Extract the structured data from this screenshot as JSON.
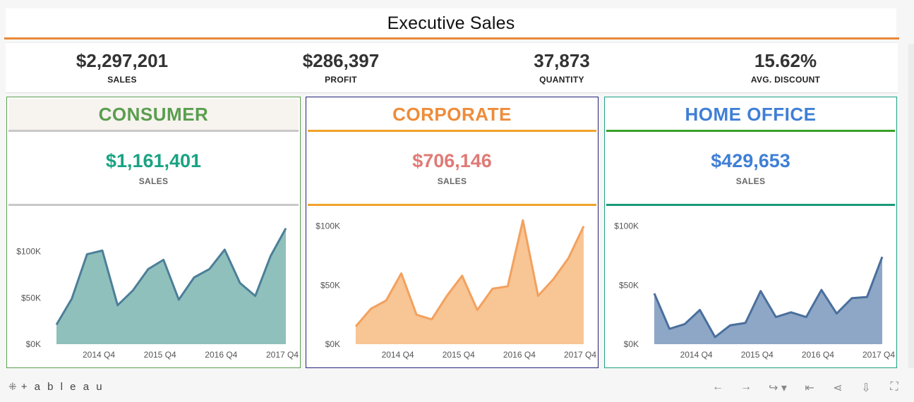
{
  "title": "Executive Sales",
  "kpis": [
    {
      "value": "$2,297,201",
      "label": "SALES"
    },
    {
      "value": "$286,397",
      "label": "PROFIT"
    },
    {
      "value": "37,873",
      "label": "QUANTITY"
    },
    {
      "value": "15.62%",
      "label": "AVG. DISCOUNT"
    }
  ],
  "panels": [
    {
      "name": "CONSUMER",
      "sales": "$1,161,401",
      "sales_label": "SALES",
      "header_color": "#5a9e4f",
      "sales_color": "#1aa383"
    },
    {
      "name": "CORPORATE",
      "sales": "$706,146",
      "sales_label": "SALES",
      "header_color": "#ee8c3a",
      "sales_color": "#e07a76"
    },
    {
      "name": "HOME OFFICE",
      "sales": "$429,653",
      "sales_label": "SALES",
      "header_color": "#3f7fd6",
      "sales_color": "#3f7fd6"
    }
  ],
  "chart_data": [
    {
      "type": "area",
      "segment": "CONSUMER",
      "x_ticks": [
        "2014 Q4",
        "2015 Q4",
        "2016 Q4",
        "2017 Q4"
      ],
      "y_ticks": [
        "$0K",
        "$50K",
        "$100K"
      ],
      "ylim": [
        0,
        140000
      ],
      "values": [
        21000,
        49000,
        97000,
        101000,
        42000,
        58000,
        81000,
        91000,
        48000,
        72000,
        81000,
        102000,
        66000,
        52000,
        95000,
        125000
      ],
      "fill": "#90c0bc",
      "stroke": "#4c7f98"
    },
    {
      "type": "area",
      "segment": "CORPORATE",
      "x_ticks": [
        "2014 Q4",
        "2015 Q4",
        "2016 Q4",
        "2017 Q4"
      ],
      "y_ticks": [
        "$0K",
        "$50K",
        "$100K"
      ],
      "ylim": [
        0,
        110000
      ],
      "values": [
        15000,
        30000,
        37000,
        60000,
        25000,
        21000,
        41000,
        58000,
        29000,
        47000,
        49000,
        105000,
        41000,
        55000,
        73000,
        100000
      ],
      "fill": "#f8c594",
      "stroke": "#f2a15e"
    },
    {
      "type": "area",
      "segment": "HOME OFFICE",
      "x_ticks": [
        "2014 Q4",
        "2015 Q4",
        "2016 Q4",
        "2017 Q4"
      ],
      "y_ticks": [
        "$0K",
        "$50K",
        "$100K"
      ],
      "ylim": [
        0,
        110000
      ],
      "values": [
        43000,
        13000,
        17000,
        29000,
        6000,
        16000,
        18000,
        45000,
        23000,
        27000,
        23000,
        46000,
        26000,
        39000,
        40000,
        74000
      ],
      "fill": "#8ea7c7",
      "stroke": "#4a6f9c"
    }
  ],
  "footer": {
    "brand": "+ a b l e a u",
    "mark": "⁜",
    "tools": [
      "←",
      "→",
      "↪ ▾",
      "⇤",
      "⋖",
      "⇩",
      "⛶"
    ]
  }
}
